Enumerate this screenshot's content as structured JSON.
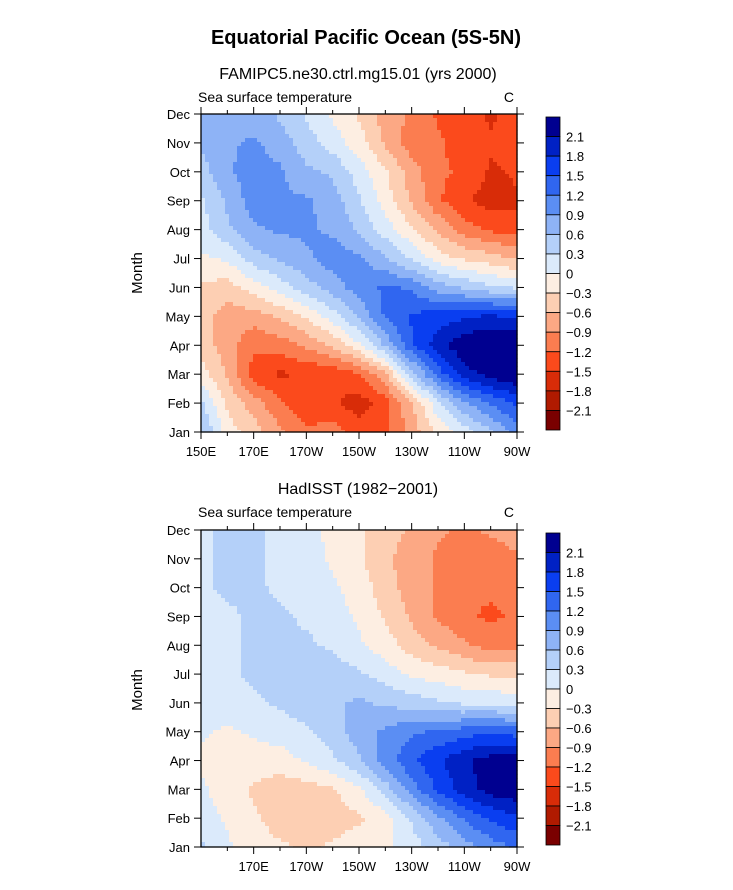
{
  "figure_title": "Equatorial Pacific Ocean (5S-5N)",
  "chart_data": [
    {
      "type": "heatmap",
      "title": "FAMIPC5.ne30.ctrl.mg15.01 (yrs 2000)",
      "variable_label": "Sea surface temperature",
      "units": "C",
      "ylabel": "Month",
      "xlabel": "",
      "x_range": [
        150,
        270
      ],
      "x_ticks": [
        {
          "lon": 150,
          "label": "150E"
        },
        {
          "lon": 170,
          "label": "170E"
        },
        {
          "lon": 190,
          "label": "170W"
        },
        {
          "lon": 210,
          "label": "150W"
        },
        {
          "lon": 230,
          "label": "130W"
        },
        {
          "lon": 250,
          "label": "110W"
        },
        {
          "lon": 270,
          "label": "90W"
        }
      ],
      "y_ticks": [
        "Jan",
        "Feb",
        "Mar",
        "Apr",
        "May",
        "Jun",
        "Jul",
        "Aug",
        "Sep",
        "Oct",
        "Nov",
        "Dec"
      ],
      "levels": [
        "2.1",
        "1.8",
        "1.5",
        "1.2",
        "0.9",
        "0.6",
        "0.3",
        "0",
        "−0.3",
        "−0.6",
        "−0.9",
        "−1.2",
        "−1.5",
        "−1.8",
        "−2.1"
      ],
      "colors": [
        "#7a0000",
        "#b01a00",
        "#d82c08",
        "#fb4a1c",
        "#fb7d50",
        "#fca884",
        "#fdcfb3",
        "#fdeee2",
        "#dbeafb",
        "#b4d0f9",
        "#8eb3f6",
        "#5b8ef3",
        "#3066f0",
        "#0a3ef0",
        "#0021c4",
        "#000090"
      ],
      "grid": {
        "lons": [
          150,
          160,
          170,
          180,
          190,
          200,
          210,
          220,
          230,
          240,
          250,
          260,
          270
        ],
        "values": [
          [
            0.5,
            -0.3,
            -0.6,
            -1.0,
            -1.3,
            -1.2,
            -1.5,
            -1.4,
            -0.9,
            -0.4,
            0.0,
            0.4,
            0.9
          ],
          [
            0.2,
            -0.5,
            -0.9,
            -1.3,
            -1.6,
            -1.6,
            -1.8,
            -1.5,
            -0.8,
            0.1,
            0.7,
            1.1,
            1.4
          ],
          [
            -0.3,
            -0.8,
            -1.5,
            -1.7,
            -1.6,
            -1.6,
            -1.4,
            -0.8,
            0.3,
            1.2,
            1.8,
            2.1,
            2.3
          ],
          [
            -0.6,
            -0.9,
            -1.3,
            -1.2,
            -1.0,
            -0.7,
            -0.2,
            0.5,
            1.3,
            1.8,
            2.2,
            2.3,
            2.4
          ],
          [
            -0.6,
            -0.9,
            -0.9,
            -0.7,
            -0.4,
            0.0,
            0.5,
            1.1,
            1.4,
            1.5,
            1.6,
            1.7,
            1.6
          ],
          [
            -0.5,
            -0.6,
            -0.3,
            0.0,
            0.3,
            0.6,
            0.9,
            1.1,
            1.0,
            0.6,
            0.4,
            0.2,
            0.1
          ],
          [
            -0.2,
            -0.1,
            0.3,
            0.5,
            0.7,
            0.9,
            0.8,
            0.5,
            0.1,
            -0.3,
            -0.5,
            -0.6,
            -0.8
          ],
          [
            0.0,
            0.4,
            0.7,
            0.8,
            0.8,
            0.7,
            0.4,
            0.0,
            -0.4,
            -0.8,
            -1.2,
            -1.4,
            -1.5
          ],
          [
            0.1,
            0.5,
            0.9,
            0.8,
            0.8,
            0.6,
            0.2,
            -0.3,
            -0.8,
            -1.3,
            -1.6,
            -1.8,
            -1.7
          ],
          [
            0.3,
            0.7,
            0.9,
            0.8,
            0.5,
            0.4,
            0.0,
            -0.4,
            -0.9,
            -1.3,
            -1.4,
            -1.7,
            -1.6
          ],
          [
            0.5,
            0.7,
            0.8,
            0.6,
            0.3,
            0.0,
            -0.3,
            -0.8,
            -1.2,
            -1.3,
            -1.5,
            -1.6,
            -1.6
          ],
          [
            0.7,
            0.7,
            0.6,
            0.4,
            0.1,
            -0.2,
            -0.5,
            -0.9,
            -1.1,
            -1.4,
            -1.5,
            -1.7,
            -1.5
          ]
        ]
      }
    },
    {
      "type": "heatmap",
      "title": "HadISST (1982−2001)",
      "variable_label": "Sea surface temperature",
      "units": "C",
      "ylabel": "Month",
      "xlabel": "",
      "x_range": [
        150,
        270
      ],
      "x_ticks": [
        {
          "lon": 170,
          "label": "170E"
        },
        {
          "lon": 190,
          "label": "170W"
        },
        {
          "lon": 210,
          "label": "150W"
        },
        {
          "lon": 230,
          "label": "130W"
        },
        {
          "lon": 250,
          "label": "110W"
        },
        {
          "lon": 270,
          "label": "90W"
        }
      ],
      "y_ticks": [
        "Jan",
        "Feb",
        "Mar",
        "Apr",
        "May",
        "Jun",
        "Jul",
        "Aug",
        "Sep",
        "Oct",
        "Nov",
        "Dec"
      ],
      "levels": [
        "2.1",
        "1.8",
        "1.5",
        "1.2",
        "0.9",
        "0.6",
        "0.3",
        "0",
        "−0.3",
        "−0.6",
        "−0.9",
        "−1.2",
        "−1.5",
        "−1.8",
        "−2.1"
      ],
      "colors": [
        "#7a0000",
        "#b01a00",
        "#d82c08",
        "#fb4a1c",
        "#fb7d50",
        "#fca884",
        "#fdcfb3",
        "#fdeee2",
        "#dbeafb",
        "#b4d0f9",
        "#8eb3f6",
        "#5b8ef3",
        "#3066f0",
        "#0a3ef0",
        "#0021c4",
        "#000090"
      ],
      "grid": {
        "lons": [
          150,
          160,
          170,
          180,
          190,
          200,
          210,
          220,
          230,
          240,
          250,
          260,
          270
        ],
        "values": [
          [
            0.2,
            -0.1,
            -0.3,
            -0.4,
            -0.5,
            -0.4,
            -0.3,
            -0.2,
            0.0,
            0.3,
            0.6,
            0.9,
            1.1
          ],
          [
            0.0,
            -0.2,
            -0.4,
            -0.6,
            -0.7,
            -0.6,
            -0.5,
            -0.3,
            0.2,
            0.7,
            1.1,
            1.4,
            1.6
          ],
          [
            -0.1,
            -0.3,
            -0.5,
            -0.6,
            -0.6,
            -0.5,
            -0.2,
            0.3,
            0.9,
            1.4,
            1.8,
            2.1,
            2.2
          ],
          [
            -0.2,
            -0.3,
            -0.3,
            -0.3,
            -0.1,
            0.1,
            0.4,
            0.9,
            1.3,
            1.6,
            1.9,
            2.1,
            2.1
          ],
          [
            -0.1,
            -0.2,
            -0.1,
            0.0,
            0.1,
            0.3,
            0.6,
            0.8,
            1.0,
            1.1,
            1.2,
            1.3,
            1.2
          ],
          [
            0.0,
            0.0,
            0.1,
            0.2,
            0.3,
            0.4,
            0.5,
            0.4,
            0.3,
            0.2,
            0.1,
            0.1,
            0.0
          ],
          [
            0.1,
            0.1,
            0.2,
            0.2,
            0.3,
            0.3,
            0.2,
            0.0,
            -0.2,
            -0.3,
            -0.4,
            -0.5,
            -0.5
          ],
          [
            0.1,
            0.1,
            0.2,
            0.2,
            0.2,
            0.1,
            -0.1,
            -0.3,
            -0.6,
            -0.8,
            -1.0,
            -1.2,
            -1.2
          ],
          [
            0.1,
            0.1,
            0.2,
            0.2,
            0.1,
            0.0,
            -0.2,
            -0.5,
            -0.8,
            -1.1,
            -1.3,
            -1.4,
            -1.3
          ],
          [
            0.1,
            0.2,
            0.2,
            0.1,
            0.0,
            -0.1,
            -0.3,
            -0.6,
            -0.9,
            -1.1,
            -1.3,
            -1.3,
            -1.2
          ],
          [
            0.1,
            0.2,
            0.2,
            0.1,
            0.0,
            -0.2,
            -0.4,
            -0.7,
            -0.9,
            -1.1,
            -1.2,
            -1.2,
            -1.1
          ],
          [
            0.1,
            0.2,
            0.2,
            0.1,
            -0.1,
            -0.2,
            -0.4,
            -0.6,
            -0.8,
            -1.0,
            -1.1,
            -1.0,
            -0.9
          ]
        ]
      }
    }
  ]
}
